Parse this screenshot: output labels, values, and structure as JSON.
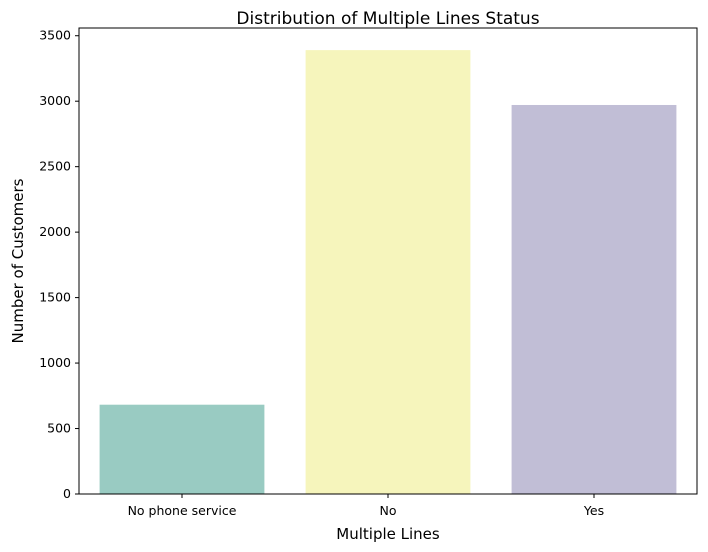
{
  "chart_data": {
    "type": "bar",
    "title": "Distribution of Multiple Lines Status",
    "xlabel": "Multiple Lines",
    "ylabel": "Number of Customers",
    "categories": [
      "No phone service",
      "No",
      "Yes"
    ],
    "values": [
      682,
      3390,
      2971
    ],
    "colors": [
      "#99cbc2",
      "#f6f5bc",
      "#c1bed6"
    ],
    "ylim": [
      0,
      3559
    ],
    "yticks": [
      0,
      500,
      1000,
      1500,
      2000,
      2500,
      3000,
      3500
    ],
    "grid": false,
    "legend": "none"
  }
}
